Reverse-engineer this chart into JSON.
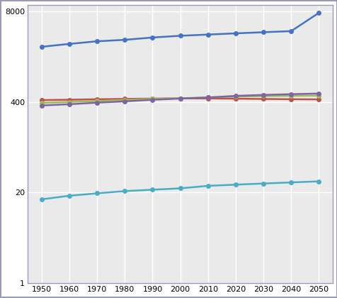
{
  "x": [
    1950,
    1960,
    1970,
    1980,
    1990,
    2000,
    2010,
    2020,
    2030,
    2040,
    2050
  ],
  "series": [
    {
      "name": "Blue",
      "color": "#4472C4",
      "values": [
        2500,
        2750,
        3000,
        3150,
        3400,
        3600,
        3750,
        3900,
        4050,
        4200,
        7700
      ]
    },
    {
      "name": "Red",
      "color": "#C0504D",
      "values": [
        428,
        433,
        440,
        445,
        450,
        452,
        452,
        448,
        444,
        440,
        438
      ]
    },
    {
      "name": "Green",
      "color": "#9BBB59",
      "values": [
        390,
        403,
        415,
        430,
        445,
        454,
        468,
        480,
        488,
        493,
        496
      ]
    },
    {
      "name": "Purple",
      "color": "#8064A2",
      "values": [
        358,
        373,
        393,
        410,
        432,
        450,
        466,
        492,
        508,
        520,
        532
      ]
    },
    {
      "name": "Cyan",
      "color": "#4BACC6",
      "values": [
        16,
        18,
        19.5,
        21,
        22,
        23,
        25,
        26,
        27,
        28,
        29
      ]
    }
  ],
  "xlim": [
    1945,
    2055
  ],
  "ylim_log": [
    1,
    10000
  ],
  "yticks": [
    1,
    20,
    400,
    8000
  ],
  "ytick_labels": [
    "1",
    "20",
    "400",
    "8000"
  ],
  "xticks": [
    1950,
    1960,
    1970,
    1980,
    1990,
    2000,
    2010,
    2020,
    2030,
    2040,
    2050
  ],
  "background_color": "#FFFFFF",
  "plot_bg_color": "#EAEAEA",
  "grid_color": "#FFFFFF",
  "border_color": "#9999BB",
  "outer_border_color": "#9999BB"
}
